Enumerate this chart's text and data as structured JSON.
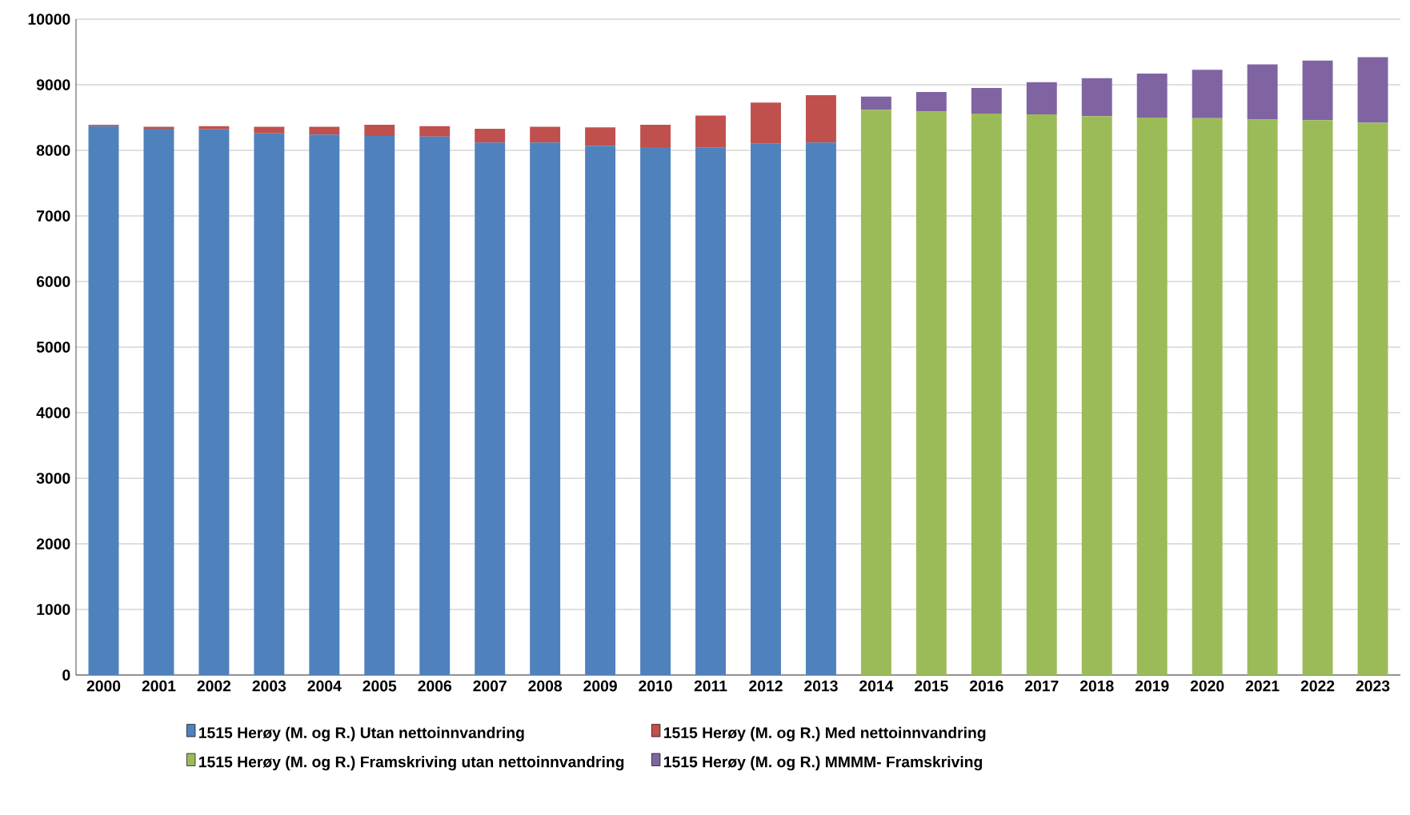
{
  "chart_data": {
    "type": "bar",
    "stacked": true,
    "categories": [
      "2000",
      "2001",
      "2002",
      "2003",
      "2004",
      "2005",
      "2006",
      "2007",
      "2008",
      "2009",
      "2010",
      "2011",
      "2012",
      "2013",
      "2014",
      "2015",
      "2016",
      "2017",
      "2018",
      "2019",
      "2020",
      "2021",
      "2022",
      "2023"
    ],
    "series": [
      {
        "name": "1515 Herøy (M. og R.) Utan nettoinnvandring",
        "color": "#4f81bd",
        "values": [
          8370,
          8330,
          8320,
          8260,
          8240,
          8220,
          8210,
          8120,
          8120,
          8070,
          8050,
          8040,
          8100,
          8120,
          null,
          null,
          null,
          null,
          null,
          null,
          null,
          null,
          null,
          null
        ]
      },
      {
        "name": "1515 Herøy (M. og R.) Med nettoinnvandring",
        "color": "#c0504d",
        "values": [
          20,
          30,
          50,
          100,
          120,
          170,
          160,
          210,
          240,
          280,
          340,
          490,
          630,
          720,
          null,
          null,
          null,
          null,
          null,
          null,
          null,
          null,
          null,
          null
        ]
      },
      {
        "name": "1515 Herøy (M. og R.) Framskriving utan nettoinnvandring",
        "color": "#9bbb59",
        "values": [
          null,
          null,
          null,
          null,
          null,
          null,
          null,
          null,
          null,
          null,
          null,
          null,
          null,
          null,
          8620,
          8590,
          8560,
          8550,
          8520,
          8500,
          8490,
          8470,
          8460,
          8420
        ]
      },
      {
        "name": "1515 Herøy (M. og R.) MMMM- Framskriving",
        "color": "#8064a2",
        "values": [
          null,
          null,
          null,
          null,
          null,
          null,
          null,
          null,
          null,
          null,
          null,
          null,
          null,
          null,
          200,
          300,
          390,
          490,
          580,
          670,
          740,
          840,
          910,
          1000
        ]
      }
    ],
    "ylim": [
      0,
      10000
    ],
    "yticks": [
      0,
      1000,
      2000,
      3000,
      4000,
      5000,
      6000,
      7000,
      8000,
      9000,
      10000
    ],
    "grid": "y",
    "legend": "bottom"
  }
}
